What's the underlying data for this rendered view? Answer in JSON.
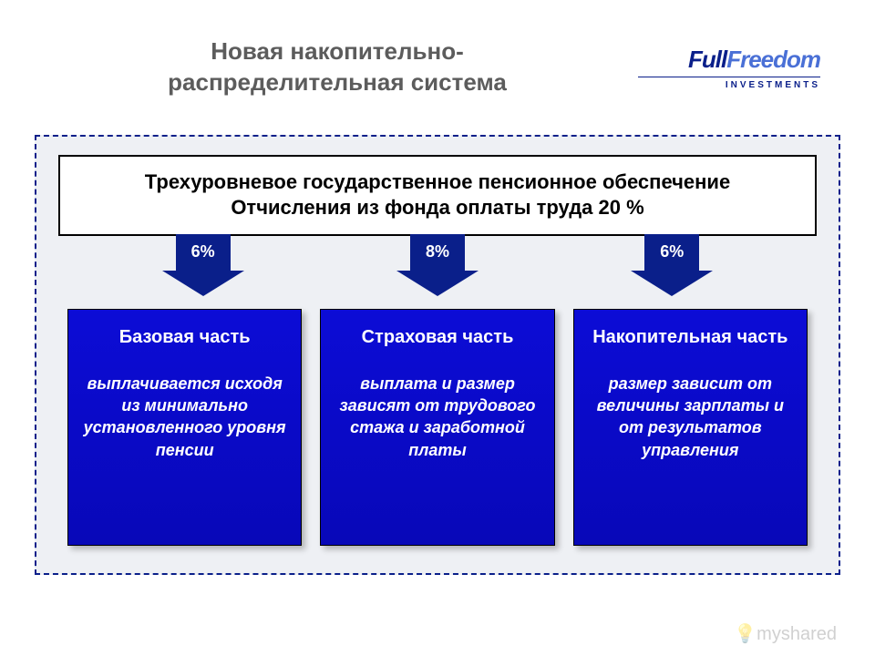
{
  "header": {
    "title": "Новая накопительно-\nраспределительная система",
    "logo_full": "Full",
    "logo_freedom": "Freedom",
    "logo_sub": "INVESTMENTS"
  },
  "top_bar": {
    "line1": "Трехуровневое государственное пенсионное обеспечение",
    "line2": "Отчисления из фонда оплаты труда  20 %"
  },
  "arrows": [
    {
      "label": "6%"
    },
    {
      "label": "8%"
    },
    {
      "label": "6%"
    }
  ],
  "boxes": [
    {
      "title": "Базовая часть",
      "desc": "выплачивается исходя из минимально установленного уровня пенсии"
    },
    {
      "title": "Страховая часть",
      "desc": "выплата и размер зависят от трудового стажа и заработной платы"
    },
    {
      "title": "Накопительная часть",
      "desc": "размер зависит от величины зарплаты и от результатов управления"
    }
  ],
  "styling": {
    "page_bg": "#ffffff",
    "frame_bg": "#eef0f4",
    "frame_border": "#0a1f8a",
    "title_color": "#5c5c5c",
    "title_fontsize": 26,
    "arrow_color": "#0a1f8a",
    "arrow_text_color": "#ffffff",
    "arrow_fontsize": 18,
    "box_bg": "#0c0cd6",
    "box_text_color": "#ffffff",
    "box_title_fontsize": 20,
    "box_desc_fontsize": 18,
    "top_bar_bg": "#ffffff",
    "top_bar_border": "#000000",
    "top_bar_fontsize": 22,
    "logo_primary": "#0a1f8a",
    "logo_secondary": "#4a70d6"
  },
  "watermark": "💡myshared"
}
